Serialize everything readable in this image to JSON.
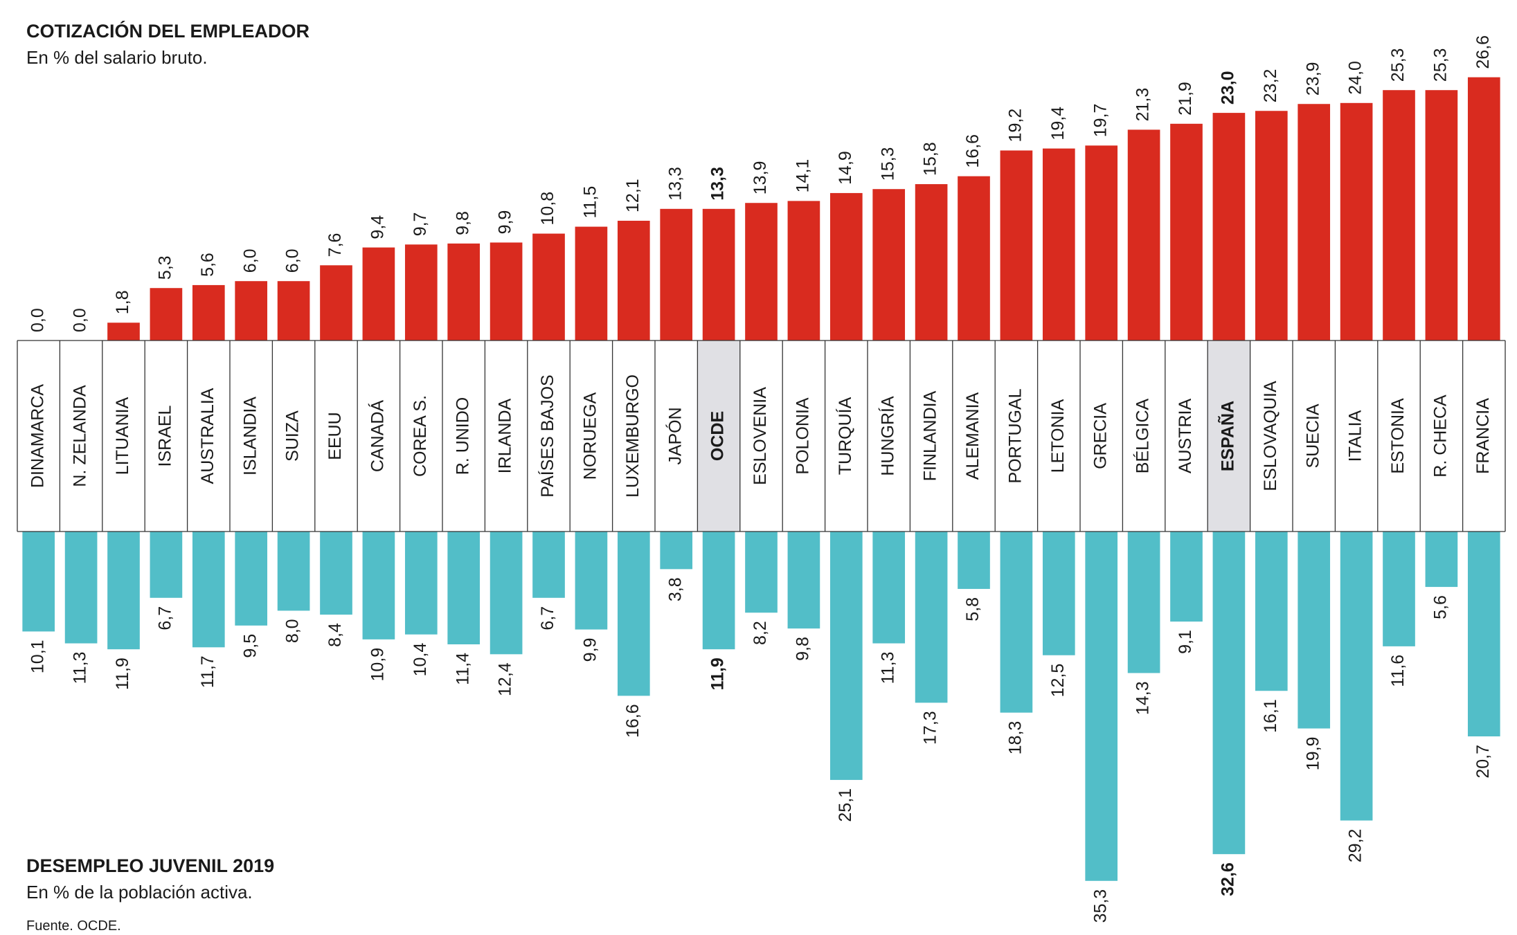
{
  "chart_data": {
    "type": "bar",
    "subtitle_top": "En % del salario bruto.",
    "subtitle_bottom": "En % de la población activa.",
    "source": "Fuente. OCDE.",
    "highlight": [
      16,
      28
    ],
    "categories": [
      "DINAMARCA",
      "N. ZELANDA",
      "LITUANIA",
      "ISRAEL",
      "AUSTRALIA",
      "ISLANDIA",
      "SUIZA",
      "EEUU",
      "CANADÁ",
      "COREA S.",
      "R. UNIDO",
      "IRLANDA",
      "PAÍSES BAJOS",
      "NORUEGA",
      "LUXEMBURGO",
      "JAPÓN",
      "OCDE",
      "ESLOVENIA",
      "POLONIA",
      "TURQUÍA",
      "HUNGRÍA",
      "FINLANDIA",
      "ALEMANIA",
      "PORTUGAL",
      "LETONIA",
      "GRECIA",
      "BÉLGICA",
      "AUSTRIA",
      "ESPAÑA",
      "ESLOVAQUIA",
      "SUECIA",
      "ITALIA",
      "ESTONIA",
      "R. CHECA",
      "FRANCIA"
    ],
    "series": [
      {
        "name": "COTIZACIÓN DEL EMPLEADOR",
        "color": "#d92b1f",
        "values": [
          0.0,
          0.0,
          1.8,
          5.3,
          5.6,
          6.0,
          6.0,
          7.6,
          9.4,
          9.7,
          9.8,
          9.9,
          10.8,
          11.5,
          12.1,
          13.3,
          13.3,
          13.9,
          14.1,
          14.9,
          15.3,
          15.8,
          16.6,
          19.2,
          19.4,
          19.7,
          21.3,
          21.9,
          23.0,
          23.2,
          23.9,
          24.0,
          25.3,
          25.3,
          26.6
        ],
        "value_labels": [
          "0,0",
          "0,0",
          "1,8",
          "5,3",
          "5,6",
          "6,0",
          "6,0",
          "7,6",
          "9,4",
          "9,7",
          "9,8",
          "9,9",
          "10,8",
          "11,5",
          "12,1",
          "13,3",
          "13,3",
          "13,9",
          "14,1",
          "14,9",
          "15,3",
          "15,8",
          "16,6",
          "19,2",
          "19,4",
          "19,7",
          "21,3",
          "21,9",
          "23,0",
          "23,2",
          "23,9",
          "24,0",
          "25,3",
          "25,3",
          "26,6"
        ]
      },
      {
        "name": "DESEMPLEO JUVENIL 2019",
        "color": "#52bec8",
        "values": [
          10.1,
          11.3,
          11.9,
          6.7,
          11.7,
          9.5,
          8.0,
          8.4,
          10.9,
          10.4,
          11.4,
          12.4,
          6.7,
          9.9,
          16.6,
          3.8,
          11.9,
          8.2,
          9.8,
          25.1,
          11.3,
          17.3,
          5.8,
          18.3,
          12.5,
          35.3,
          14.3,
          9.1,
          32.6,
          16.1,
          19.9,
          29.2,
          11.6,
          5.6,
          20.7
        ],
        "value_labels": [
          "10,1",
          "11,3",
          "11,9",
          "6,7",
          "11,7",
          "9,5",
          "8,0",
          "8,4",
          "10,9",
          "10,4",
          "11,4",
          "12,4",
          "6,7",
          "9,9",
          "16,6",
          "3,8",
          "11,9",
          "8,2",
          "9,8",
          "25,1",
          "11,3",
          "17,3",
          "5,8",
          "18,3",
          "12,5",
          "35,3",
          "14,3",
          "9,1",
          "32,6",
          "16,1",
          "19,9",
          "29,2",
          "11,6",
          "5,6",
          "20,7"
        ]
      }
    ]
  }
}
